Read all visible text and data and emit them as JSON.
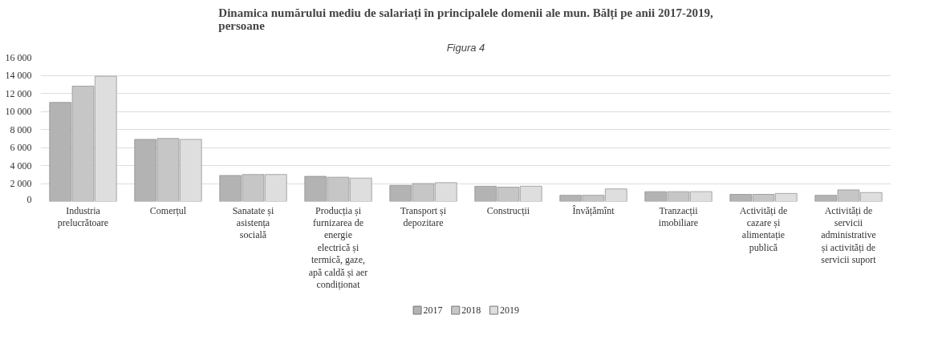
{
  "chart_data": {
    "type": "bar",
    "title": "Dinamica numărului mediu de salariați în principalele domenii ale mun. Bălți pe anii 2017-2019, persoane",
    "subtitle": "Figura 4",
    "categories": [
      "Industria prelucrătoare",
      "Comerțul",
      "Sanatate și asistența socială",
      "Producția și furnizarea de energie electrică și termică, gaze, apă caldă și aer condiționat",
      "Transport și depozitare",
      "Construcții",
      "Învățămînt",
      "Tranzacții imobiliare",
      "Activități de cazare și alimentație publică",
      "Activități de servicii administrative și activități de servicii suport"
    ],
    "series": [
      {
        "name": "2017",
        "color": "#b3b3b3",
        "values": [
          11000,
          6900,
          2900,
          2800,
          1800,
          1700,
          700,
          1100,
          800,
          700
        ]
      },
      {
        "name": "2018",
        "color": "#c6c6c6",
        "values": [
          12800,
          7000,
          3000,
          2700,
          2000,
          1600,
          700,
          1100,
          800,
          1300
        ]
      },
      {
        "name": "2019",
        "color": "#dedede",
        "values": [
          13900,
          6900,
          3000,
          2600,
          2100,
          1700,
          1400,
          1100,
          900,
          1000
        ]
      }
    ],
    "ylim": [
      0,
      16000
    ],
    "yticks": [
      {
        "value": 0,
        "label": "0"
      },
      {
        "value": 2000,
        "label": "2 000"
      },
      {
        "value": 4000,
        "label": "4 000"
      },
      {
        "value": 6000,
        "label": "6 000"
      },
      {
        "value": 8000,
        "label": "8 000"
      },
      {
        "value": 10000,
        "label": "10 000"
      },
      {
        "value": 12000,
        "label": "12 000"
      },
      {
        "value": 14000,
        "label": "14 000"
      },
      {
        "value": 16000,
        "label": "16 000"
      }
    ],
    "grid": "y",
    "legend": "bottom"
  }
}
